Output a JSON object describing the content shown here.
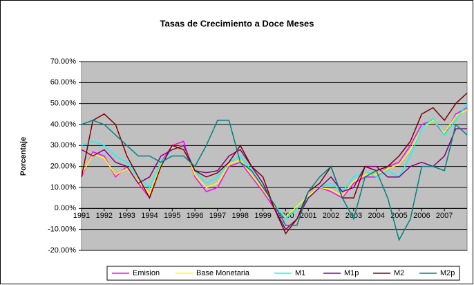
{
  "chart_data": {
    "type": "line",
    "title": "Tasas de Crecimiento a Doce Meses",
    "y_label": "Porcentaje",
    "x": [
      1991,
      1991.5,
      1992,
      1992.5,
      1993,
      1993.5,
      1994,
      1994.5,
      1995,
      1995.5,
      1996,
      1996.5,
      1997,
      1997.5,
      1998,
      1998.5,
      1999,
      1999.5,
      2000,
      2000.5,
      2001,
      2001.5,
      2002,
      2002.5,
      2003,
      2003.5,
      2004,
      2004.5,
      2005,
      2005.5,
      2006,
      2006.5,
      2007,
      2007.5,
      2008
    ],
    "xlim": [
      1991,
      2008
    ],
    "xticks": [
      1991,
      1992,
      1993,
      1994,
      1995,
      1996,
      1997,
      1998,
      1999,
      2000,
      2001,
      2002,
      2003,
      2004,
      2005,
      2006,
      2007
    ],
    "ylim": [
      -20,
      70
    ],
    "yticks": [
      {
        "value": -20,
        "label": "-20.00%"
      },
      {
        "value": -10,
        "label": "-10.00%"
      },
      {
        "value": 0,
        "label": "0.00%"
      },
      {
        "value": 10,
        "label": "10.00%"
      },
      {
        "value": 20,
        "label": "20.00%"
      },
      {
        "value": 30,
        "label": "30.00%"
      },
      {
        "value": 40,
        "label": "40.00%"
      },
      {
        "value": 50,
        "label": "50.00%"
      },
      {
        "value": 60,
        "label": "60.00%"
      },
      {
        "value": 70,
        "label": "70.00%"
      }
    ],
    "grid": true,
    "legend": "bottom",
    "plot_background": "#c0c0c0",
    "series": [
      {
        "name": "Emision",
        "color": "#ff00ff",
        "values": [
          15,
          27,
          25,
          15,
          20,
          12,
          5,
          22,
          30,
          32,
          15,
          8,
          10,
          20,
          22,
          15,
          8,
          0,
          -5,
          0,
          5,
          10,
          8,
          5,
          12,
          15,
          15,
          20,
          22,
          30,
          40,
          42,
          35,
          45,
          48
        ]
      },
      {
        "name": "Base Monetaria",
        "color": "#ffff00",
        "values": [
          16,
          26,
          24,
          16,
          19,
          13,
          7,
          21,
          29,
          30,
          16,
          10,
          12,
          21,
          23,
          16,
          9,
          1,
          -4,
          1,
          6,
          10,
          9,
          6,
          13,
          16,
          16,
          19,
          21,
          28,
          38,
          42,
          36,
          44,
          47
        ]
      },
      {
        "name": "M1",
        "color": "#00ffff",
        "values": [
          30,
          32,
          30,
          25,
          22,
          15,
          10,
          22,
          28,
          30,
          18,
          12,
          15,
          22,
          25,
          18,
          10,
          2,
          -5,
          0,
          5,
          10,
          12,
          8,
          15,
          18,
          15,
          18,
          15,
          25,
          38,
          43,
          35,
          42,
          50
        ]
      },
      {
        "name": "M1p",
        "color": "#800080",
        "values": [
          28,
          25,
          28,
          22,
          20,
          12,
          15,
          25,
          28,
          30,
          18,
          17,
          18,
          25,
          28,
          20,
          12,
          0,
          -10,
          -5,
          5,
          10,
          15,
          8,
          10,
          20,
          20,
          15,
          15,
          20,
          22,
          20,
          25,
          38,
          38
        ]
      },
      {
        "name": "M2",
        "color": "#800000",
        "values": [
          15,
          42,
          45,
          40,
          25,
          15,
          5,
          20,
          30,
          28,
          18,
          15,
          17,
          22,
          30,
          20,
          15,
          0,
          -12,
          -5,
          8,
          12,
          20,
          5,
          5,
          20,
          18,
          20,
          25,
          32,
          45,
          48,
          42,
          50,
          55
        ]
      },
      {
        "name": "M2p",
        "color": "#008080",
        "values": [
          40,
          42,
          40,
          35,
          30,
          25,
          25,
          22,
          25,
          25,
          20,
          30,
          42,
          42,
          22,
          18,
          10,
          2,
          -8,
          -8,
          8,
          15,
          20,
          5,
          -5,
          15,
          18,
          5,
          -15,
          -5,
          20,
          20,
          18,
          40,
          35
        ]
      }
    ]
  }
}
